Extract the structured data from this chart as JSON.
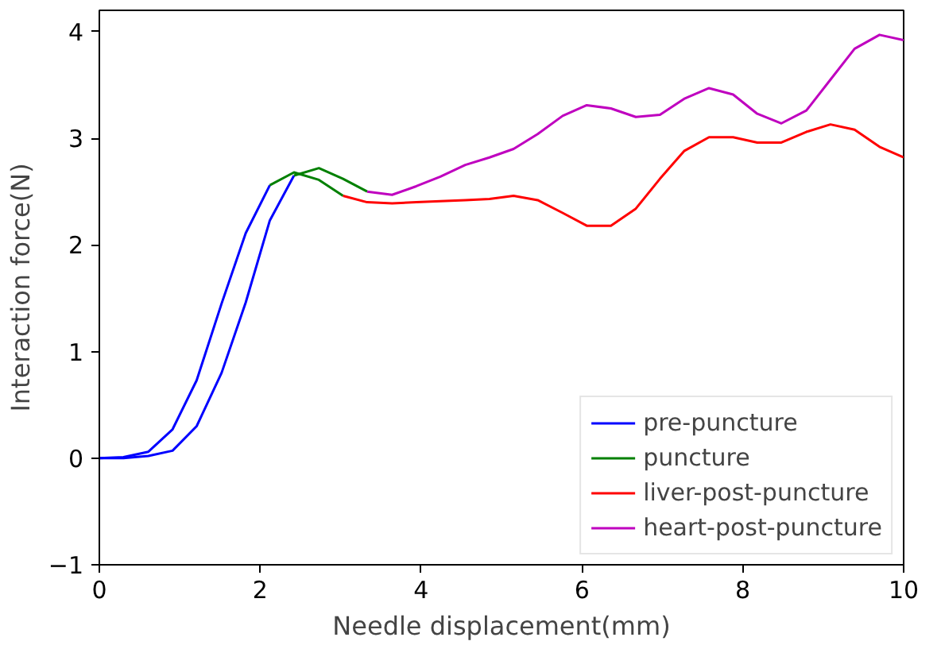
{
  "chart_data": {
    "type": "line",
    "xlabel": "Needle displacement(mm)",
    "ylabel": "Interaction force(N)",
    "xlim": [
      0,
      10
    ],
    "ylim": [
      -1,
      4.2
    ],
    "xticks": [
      0,
      2,
      4,
      6,
      8,
      10
    ],
    "yticks": [
      -1,
      0,
      1,
      2,
      3,
      4
    ],
    "grid": false,
    "legend": "bottom right",
    "marker": "none",
    "line_style": "solid",
    "series": [
      {
        "name": "pre-puncture",
        "color": "#0000ff",
        "x": [
          0,
          0.3,
          0.61,
          0.91,
          1.21,
          1.52,
          1.82,
          2.12
        ],
        "values": [
          0,
          0.01,
          0.06,
          0.27,
          0.73,
          1.45,
          2.11,
          2.56
        ]
      },
      {
        "color": "#0000ff",
        "x": [
          0,
          0.3,
          0.61,
          0.91,
          1.21,
          1.52,
          1.82,
          2.12,
          2.42
        ],
        "values": [
          0,
          0,
          0.02,
          0.07,
          0.3,
          0.8,
          1.46,
          2.23,
          2.65
        ]
      },
      {
        "name": "puncture",
        "color": "#008000",
        "x": [
          2.12,
          2.42,
          2.73,
          3.03
        ],
        "values": [
          2.56,
          2.68,
          2.61,
          2.46
        ]
      },
      {
        "color": "#008000",
        "x": [
          2.42,
          2.73,
          3.03,
          3.33
        ],
        "values": [
          2.65,
          2.72,
          2.62,
          2.5
        ]
      },
      {
        "name": "liver-post-puncture",
        "color": "#ff0000",
        "x": [
          3.03,
          3.33,
          3.64,
          3.94,
          4.24,
          4.55,
          4.85,
          5.15,
          5.45,
          5.76,
          6.06,
          6.36,
          6.67,
          6.97,
          7.27,
          7.58,
          7.88,
          8.18,
          8.48,
          8.79,
          9.09,
          9.39,
          9.7,
          10.0
        ],
        "values": [
          2.46,
          2.4,
          2.39,
          2.4,
          2.41,
          2.42,
          2.43,
          2.46,
          2.42,
          2.3,
          2.18,
          2.18,
          2.34,
          2.62,
          2.88,
          3.01,
          3.01,
          2.96,
          2.96,
          3.06,
          3.13,
          3.08,
          2.92,
          2.82
        ]
      },
      {
        "name": "heart-post-puncture",
        "color": "#bf00bf",
        "x": [
          3.33,
          3.64,
          3.94,
          4.24,
          4.55,
          4.85,
          5.15,
          5.45,
          5.76,
          6.06,
          6.36,
          6.67,
          6.97,
          7.27,
          7.58,
          7.88,
          8.18,
          8.48,
          8.79,
          9.09,
          9.39,
          9.7,
          10.0
        ],
        "values": [
          2.5,
          2.47,
          2.55,
          2.64,
          2.75,
          2.82,
          2.9,
          3.04,
          3.21,
          3.31,
          3.28,
          3.2,
          3.22,
          3.37,
          3.47,
          3.41,
          3.23,
          3.14,
          3.26,
          3.55,
          3.84,
          3.97,
          3.92
        ]
      }
    ]
  }
}
